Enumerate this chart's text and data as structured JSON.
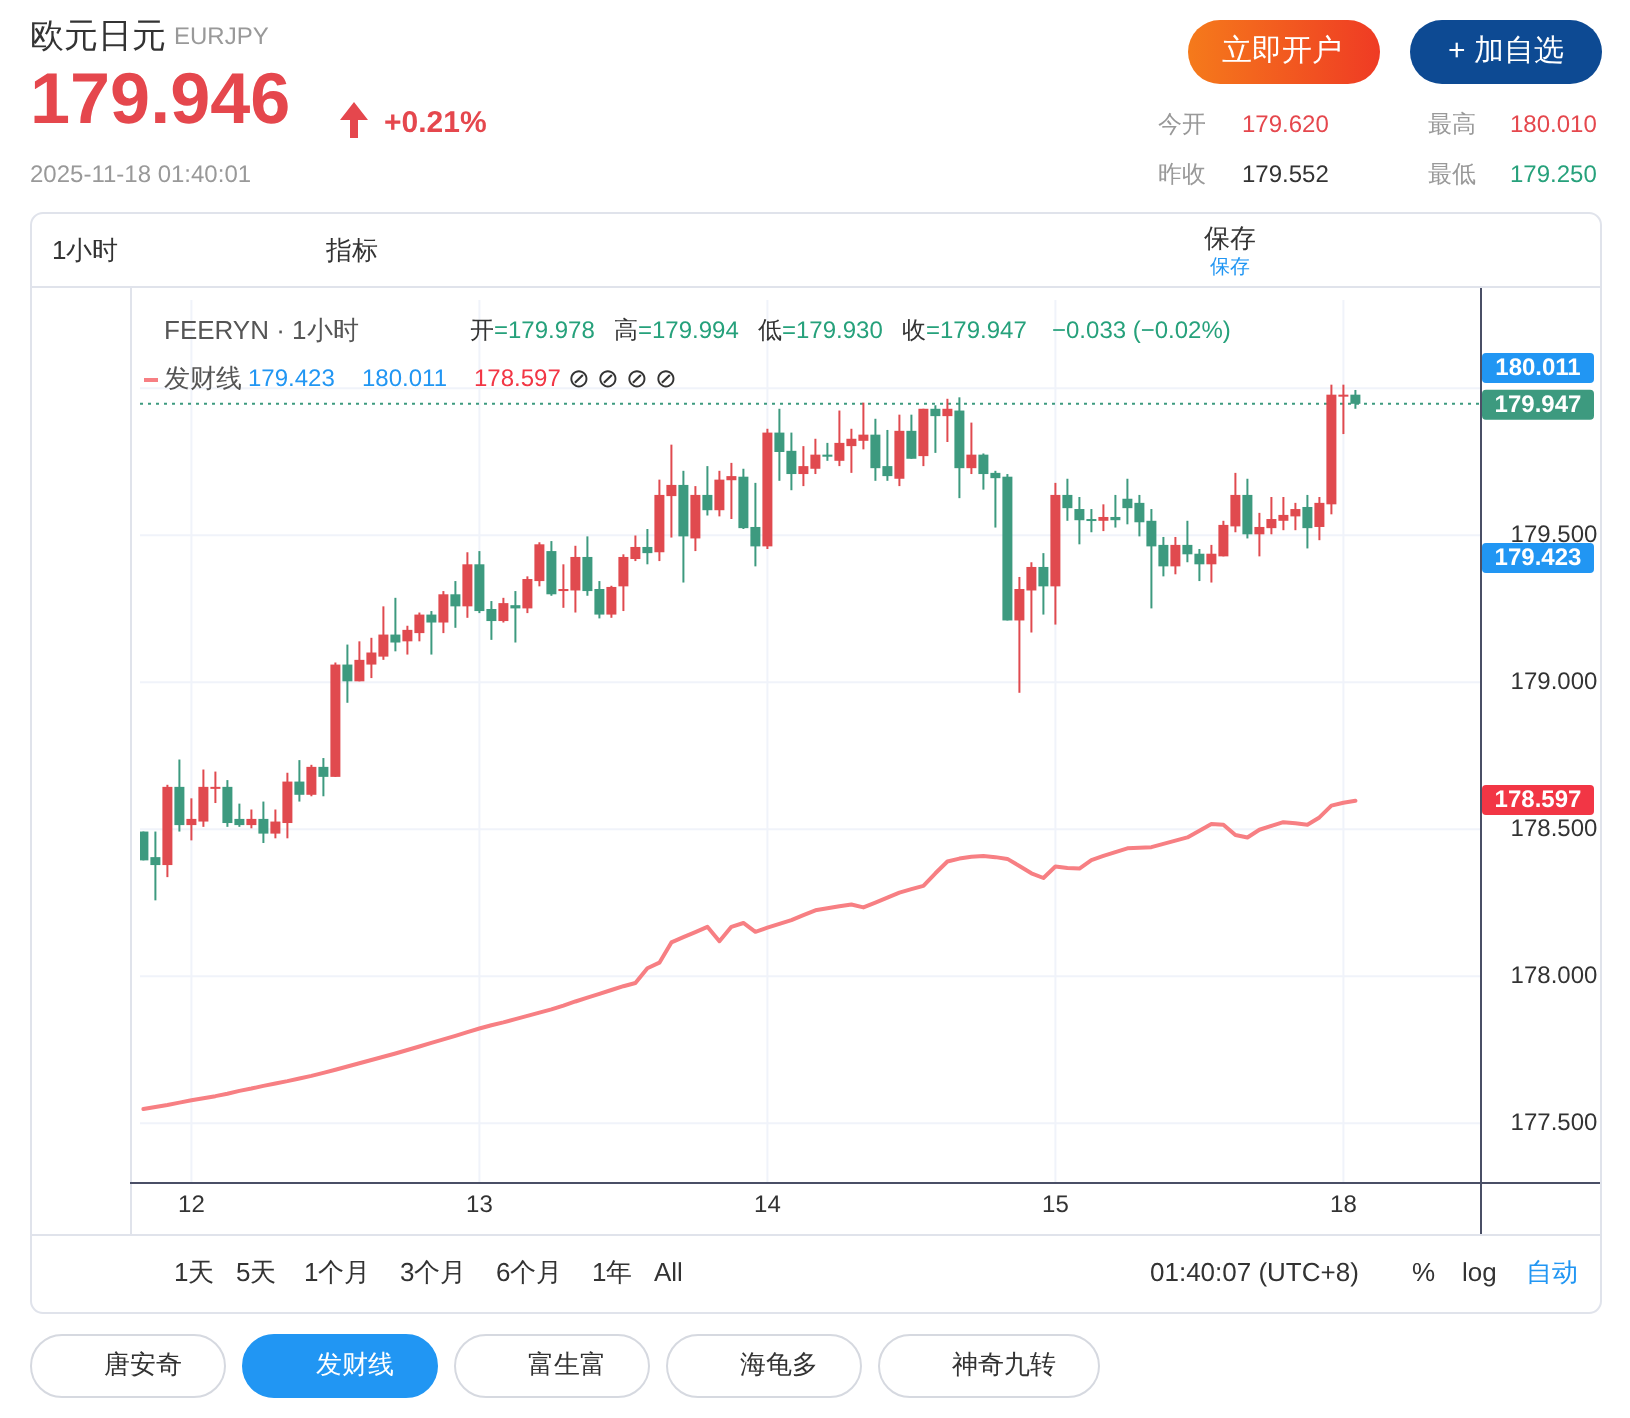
{
  "chart_data": {
    "type": "candlestick",
    "title": "欧元日元",
    "subtitle": "EURJPY",
    "categories": [
      null,
      null,
      null,
      null,
      "12",
      null,
      null,
      null,
      null,
      null,
      null,
      null,
      null,
      null,
      null,
      null,
      null,
      null,
      null,
      null,
      null,
      null,
      null,
      null,
      null,
      null,
      null,
      null,
      "13",
      null,
      null,
      null,
      null,
      null,
      null,
      null,
      null,
      null,
      null,
      null,
      null,
      null,
      null,
      null,
      null,
      null,
      null,
      null,
      null,
      null,
      null,
      null,
      "14",
      null,
      null,
      null,
      null,
      null,
      null,
      null,
      null,
      null,
      null,
      null,
      null,
      null,
      null,
      null,
      null,
      null,
      null,
      null,
      null,
      null,
      null,
      null,
      "15",
      null,
      null,
      null,
      null,
      null,
      null,
      null,
      null,
      null,
      null,
      null,
      null,
      null,
      null,
      null,
      null,
      null,
      null,
      null,
      null,
      null,
      null,
      null,
      "18",
      null
    ],
    "ohlc": [
      [
        178.492,
        178.492,
        178.394,
        178.394
      ],
      [
        178.405,
        178.492,
        178.258,
        178.378
      ],
      [
        178.378,
        178.651,
        178.337,
        178.644
      ],
      [
        178.644,
        178.737,
        178.492,
        178.514
      ],
      [
        178.514,
        178.605,
        178.462,
        178.535
      ],
      [
        178.526,
        178.703,
        178.508,
        178.644
      ],
      [
        178.639,
        178.696,
        178.589,
        178.644
      ],
      [
        178.644,
        178.667,
        178.508,
        178.521
      ],
      [
        178.535,
        178.587,
        178.508,
        178.514
      ],
      [
        178.514,
        178.567,
        178.503,
        178.535
      ],
      [
        178.535,
        178.594,
        178.453,
        178.485
      ],
      [
        178.485,
        178.567,
        178.469,
        178.526
      ],
      [
        178.521,
        178.692,
        178.469,
        178.662
      ],
      [
        178.662,
        178.735,
        178.594,
        178.617
      ],
      [
        178.617,
        178.719,
        178.612,
        178.712
      ],
      [
        178.712,
        178.742,
        178.612,
        178.678
      ],
      [
        178.678,
        179.067,
        178.678,
        179.06
      ],
      [
        179.06,
        179.128,
        178.93,
        179.003
      ],
      [
        179.003,
        179.139,
        179.003,
        179.076
      ],
      [
        179.06,
        179.151,
        179.014,
        179.101
      ],
      [
        179.087,
        179.258,
        179.076,
        179.162
      ],
      [
        179.162,
        179.287,
        179.105,
        179.135
      ],
      [
        179.139,
        179.192,
        179.094,
        179.178
      ],
      [
        179.167,
        179.237,
        179.139,
        179.23
      ],
      [
        179.23,
        179.242,
        179.094,
        179.203
      ],
      [
        179.203,
        179.31,
        179.167,
        179.299
      ],
      [
        179.299,
        179.344,
        179.185,
        179.258
      ],
      [
        179.258,
        179.442,
        179.219,
        179.401
      ],
      [
        179.401,
        179.446,
        179.235,
        179.242
      ],
      [
        179.249,
        179.276,
        179.144,
        179.208
      ],
      [
        179.208,
        179.287,
        179.203,
        179.269
      ],
      [
        179.262,
        179.31,
        179.135,
        179.251
      ],
      [
        179.251,
        179.36,
        179.235,
        179.351
      ],
      [
        179.344,
        179.476,
        179.326,
        179.469
      ],
      [
        179.446,
        179.48,
        179.294,
        179.299
      ],
      [
        179.31,
        179.401,
        179.253,
        179.317
      ],
      [
        179.312,
        179.464,
        179.237,
        179.426
      ],
      [
        179.426,
        179.496,
        179.294,
        179.31
      ],
      [
        179.317,
        179.344,
        179.217,
        179.23
      ],
      [
        179.23,
        179.328,
        179.219,
        179.324
      ],
      [
        179.326,
        179.435,
        179.242,
        179.426
      ],
      [
        179.419,
        179.499,
        179.412,
        179.46
      ],
      [
        179.46,
        179.521,
        179.401,
        179.439
      ],
      [
        179.442,
        179.689,
        179.412,
        179.637
      ],
      [
        179.633,
        179.808,
        179.492,
        179.671
      ],
      [
        179.671,
        179.719,
        179.339,
        179.496
      ],
      [
        179.489,
        179.667,
        179.446,
        179.637
      ],
      [
        179.637,
        179.735,
        179.567,
        179.585
      ],
      [
        179.585,
        179.719,
        179.564,
        179.689
      ],
      [
        179.687,
        179.746,
        179.555,
        179.701
      ],
      [
        179.699,
        179.726,
        179.521,
        179.524
      ],
      [
        179.528,
        179.678,
        179.394,
        179.462
      ],
      [
        179.462,
        179.862,
        179.453,
        179.849
      ],
      [
        179.849,
        179.93,
        179.685,
        179.783
      ],
      [
        179.787,
        179.849,
        179.653,
        179.708
      ],
      [
        179.708,
        179.803,
        179.667,
        179.735
      ],
      [
        179.726,
        179.828,
        179.708,
        179.774
      ],
      [
        179.774,
        179.814,
        179.753,
        179.767
      ],
      [
        179.753,
        179.924,
        179.735,
        179.814
      ],
      [
        179.803,
        179.862,
        179.712,
        179.828
      ],
      [
        179.821,
        179.951,
        179.792,
        179.842
      ],
      [
        179.842,
        179.896,
        179.685,
        179.728
      ],
      [
        179.735,
        179.858,
        179.685,
        179.701
      ],
      [
        179.692,
        179.91,
        179.667,
        179.855
      ],
      [
        179.855,
        179.91,
        179.76,
        179.76
      ],
      [
        179.769,
        179.93,
        179.735,
        179.93
      ],
      [
        179.93,
        179.942,
        179.78,
        179.905
      ],
      [
        179.905,
        179.964,
        179.817,
        179.93
      ],
      [
        179.924,
        179.969,
        179.626,
        179.728
      ],
      [
        179.728,
        179.883,
        179.708,
        179.774
      ],
      [
        179.774,
        179.778,
        179.655,
        179.708
      ],
      [
        179.712,
        179.719,
        179.526,
        179.694
      ],
      [
        179.699,
        179.708,
        179.21,
        179.21
      ],
      [
        179.21,
        179.358,
        178.964,
        179.317
      ],
      [
        179.312,
        179.408,
        179.169,
        179.392
      ],
      [
        179.392,
        179.439,
        179.23,
        179.326
      ],
      [
        179.326,
        179.678,
        179.196,
        179.637
      ],
      [
        179.637,
        179.692,
        179.549,
        179.592
      ],
      [
        179.589,
        179.63,
        179.469,
        179.551
      ],
      [
        179.555,
        179.589,
        179.51,
        179.551
      ],
      [
        179.549,
        179.605,
        179.514,
        179.562
      ],
      [
        179.562,
        179.637,
        179.526,
        179.551
      ],
      [
        179.624,
        179.692,
        179.537,
        179.592
      ],
      [
        179.61,
        179.637,
        179.496,
        179.544
      ],
      [
        179.549,
        179.589,
        179.251,
        179.462
      ],
      [
        179.467,
        179.494,
        179.36,
        179.394
      ],
      [
        179.394,
        179.494,
        179.367,
        179.467
      ],
      [
        179.467,
        179.549,
        179.408,
        179.435
      ],
      [
        179.437,
        179.453,
        179.344,
        179.401
      ],
      [
        179.401,
        179.467,
        179.339,
        179.437
      ],
      [
        179.428,
        179.549,
        179.428,
        179.535
      ],
      [
        179.53,
        179.712,
        179.51,
        179.637
      ],
      [
        179.637,
        179.692,
        179.489,
        179.503
      ],
      [
        179.503,
        179.576,
        179.428,
        179.528
      ],
      [
        179.524,
        179.63,
        179.503,
        179.555
      ],
      [
        179.549,
        179.63,
        179.517,
        179.569
      ],
      [
        179.564,
        179.61,
        179.517,
        179.589
      ],
      [
        179.596,
        179.637,
        179.455,
        179.524
      ],
      [
        179.528,
        179.63,
        179.483,
        179.61
      ],
      [
        179.605,
        180.012,
        179.571,
        179.978
      ],
      [
        179.976,
        180.012,
        179.844,
        179.978
      ],
      [
        179.978,
        179.994,
        179.93,
        179.947
      ]
    ],
    "series": [
      {
        "name": "发财线",
        "type": "line",
        "color": "#f77f83",
        "values": [
          177.548,
          177.555,
          177.562,
          177.57,
          177.578,
          177.585,
          177.592,
          177.6,
          177.61,
          177.618,
          177.627,
          177.635,
          177.643,
          177.652,
          177.661,
          177.671,
          177.682,
          177.693,
          177.704,
          177.715,
          177.726,
          177.737,
          177.749,
          177.761,
          177.773,
          177.785,
          177.797,
          177.81,
          177.822,
          177.833,
          177.843,
          177.854,
          177.865,
          177.876,
          177.887,
          177.9,
          177.914,
          177.927,
          177.94,
          177.953,
          177.966,
          177.977,
          178.027,
          178.046,
          178.115,
          178.133,
          178.15,
          178.168,
          178.119,
          178.168,
          178.181,
          178.151,
          178.165,
          178.178,
          178.191,
          178.208,
          178.224,
          178.231,
          178.238,
          178.244,
          178.234,
          178.25,
          178.267,
          178.284,
          178.296,
          178.307,
          178.35,
          178.39,
          178.4,
          178.406,
          178.409,
          178.405,
          178.399,
          178.375,
          178.35,
          178.334,
          178.373,
          178.368,
          178.366,
          178.395,
          178.409,
          178.422,
          178.435,
          178.437,
          178.439,
          178.45,
          178.461,
          178.472,
          178.495,
          178.518,
          178.515,
          178.48,
          178.472,
          178.498,
          178.511,
          178.524,
          178.52,
          178.515,
          178.54,
          178.58,
          178.59,
          178.597
        ]
      }
    ],
    "ylim": [
      177.3,
      180.3
    ],
    "yticks": [
      {
        "value": 177.5,
        "label": "177.500"
      },
      {
        "value": 178.0,
        "label": "178.000"
      },
      {
        "value": 178.5,
        "label": "178.500"
      },
      {
        "value": 179.0,
        "label": "179.000"
      },
      {
        "value": 179.5,
        "label": "179.500"
      },
      {
        "value": 180.0,
        "label": null
      }
    ],
    "grid": true,
    "legend": "top left",
    "ref_lines": [
      {
        "axis": "y",
        "value": 179.947,
        "label": "179.947",
        "color": "#3d9a7f",
        "line_style": "dotted"
      }
    ],
    "annotations": [
      "180.011",
      "179.423",
      "178.597",
      "179.946",
      "+0.21%",
      "2025-11-18 01:40:01",
      "今开",
      "179.620",
      "最高",
      "180.010",
      "昨收",
      "179.552",
      "最低",
      "179.250",
      "立即开户",
      "+ 加自选",
      "1小时",
      "指标",
      "保存",
      "保存",
      "FEERYN · 1小时",
      "开=179.978",
      "高=179.994",
      "低=179.930",
      "收=179.947",
      "−0.033 (−0.02%)",
      "179.423",
      "180.011",
      "178.597",
      "⊘ ⊘ ⊘ ⊘",
      "1天",
      "5天",
      "1个月",
      "3个月",
      "6个月",
      "1年",
      "All",
      "01:40:07 (UTC+8)",
      "%",
      "log",
      "自动",
      "唐安奇",
      "发财线",
      "富生富",
      "海龟多",
      "神奇九转"
    ]
  }
}
